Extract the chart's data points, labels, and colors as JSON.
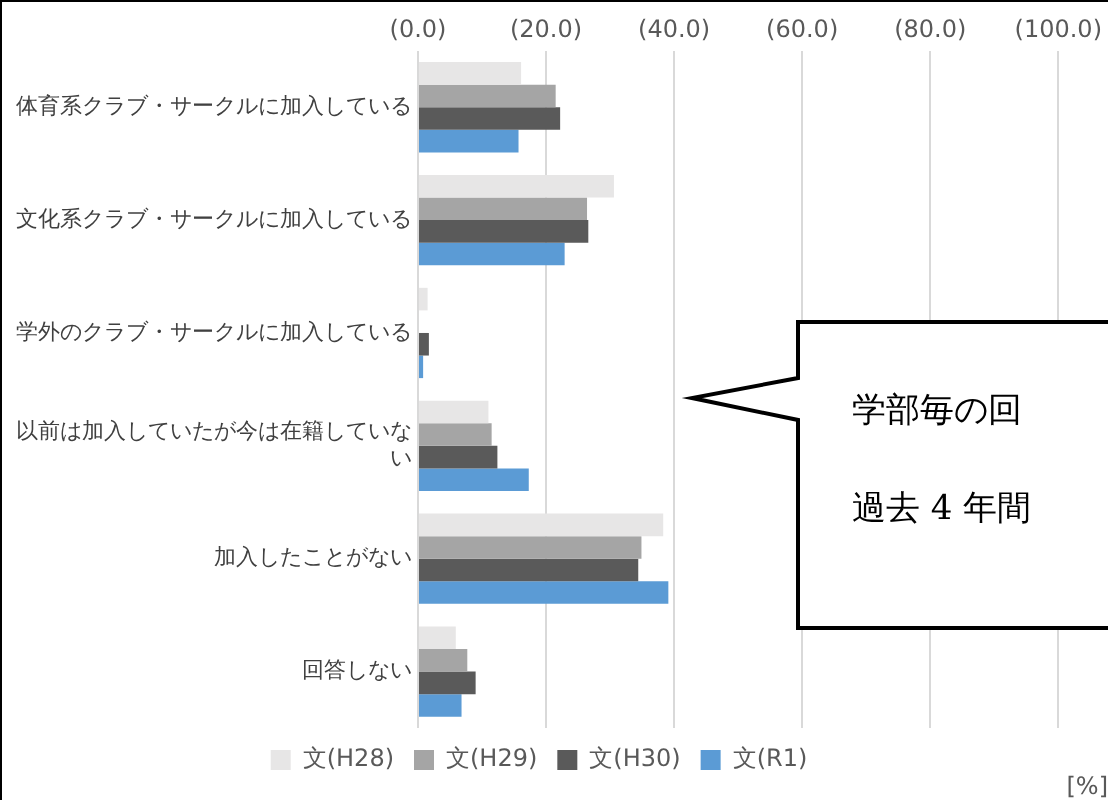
{
  "chart_data": {
    "type": "bar",
    "orientation": "horizontal",
    "categories": [
      "体育系クラブ・サークルに加入している",
      "文化系クラブ・サークルに加入している",
      "学外のクラブ・サークルに加入している",
      "以前は加入していたが今は在籍していない",
      "加入したことがない",
      "回答しない"
    ],
    "series": [
      {
        "name": "文(H28)",
        "color": "#e7e6e6",
        "values": [
          16.1,
          30.6,
          1.5,
          11.0,
          38.3,
          5.9
        ]
      },
      {
        "name": "文(H29)",
        "color": "#a5a5a5",
        "values": [
          21.5,
          26.4,
          null,
          11.5,
          34.9,
          7.7
        ]
      },
      {
        "name": "文(H30)",
        "color": "#5a5a5a",
        "values": [
          22.2,
          26.6,
          1.7,
          12.4,
          34.4,
          9.0
        ]
      },
      {
        "name": "文(R1)",
        "color": "#5b9bd5",
        "values": [
          15.7,
          22.9,
          0.8,
          17.3,
          39.1,
          6.8
        ]
      }
    ],
    "xlim": [
      0,
      100
    ],
    "xticks": [
      {
        "value": 0,
        "label": "(0.0)"
      },
      {
        "value": 20,
        "label": "(20.0)"
      },
      {
        "value": 40,
        "label": "(40.0)"
      },
      {
        "value": 60,
        "label": "(60.0)"
      },
      {
        "value": 80,
        "label": "(80.0)"
      },
      {
        "value": 100,
        "label": "(100.0)"
      }
    ],
    "xlabel": "[%]",
    "grid": "x",
    "legend": "bottom",
    "annotations": [
      "学部毎の回",
      "過去 4 年間"
    ]
  }
}
